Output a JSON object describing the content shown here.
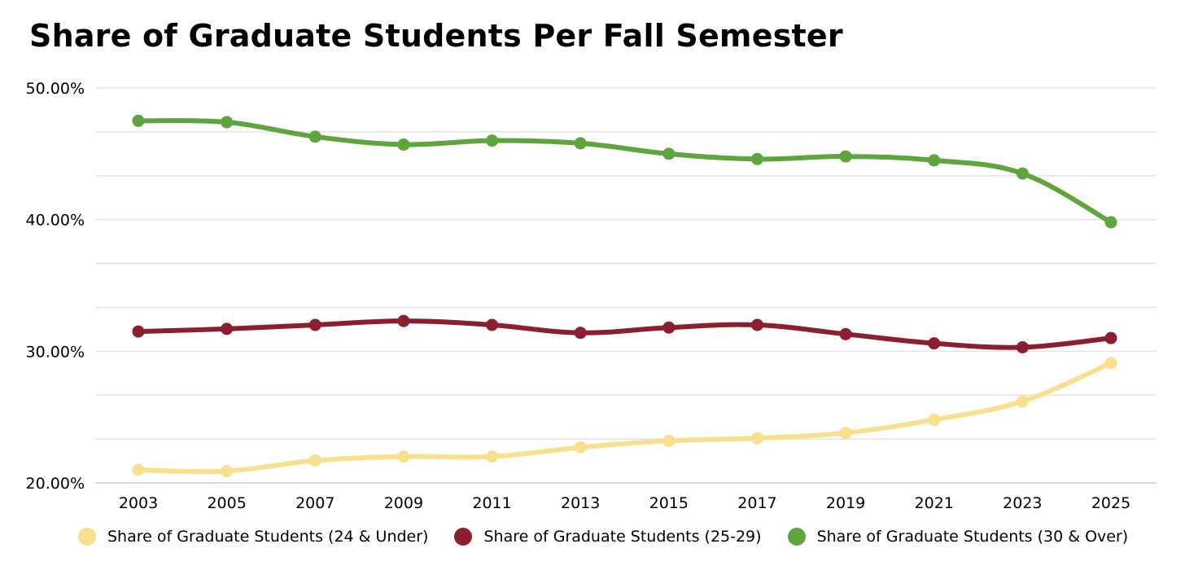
{
  "chart_data": {
    "type": "line",
    "title": "Share of Graduate Students Per Fall Semester",
    "xlabel": "",
    "ylabel": "",
    "x": [
      2003,
      2004,
      2005,
      2006,
      2007,
      2008,
      2009,
      2010,
      2011,
      2012,
      2013,
      2014,
      2015,
      2016,
      2017,
      2018,
      2019,
      2020,
      2021,
      2022,
      2023,
      2024,
      2025
    ],
    "x_tick_labels": [
      "2003",
      "2005",
      "2007",
      "2009",
      "2011",
      "2013",
      "2015",
      "2017",
      "2019",
      "2021",
      "2023",
      "2025"
    ],
    "y_tick_labels": [
      "20.00%",
      "30.00%",
      "40.00%",
      "50.00%"
    ],
    "ylim": [
      20,
      50
    ],
    "y_gridlines": [
      20,
      23.33,
      26.67,
      30,
      33.33,
      36.67,
      40,
      43.33,
      46.67,
      50
    ],
    "grid": true,
    "legend_position": "bottom",
    "series": [
      {
        "name": "Share of Graduate Students (24 & Under)",
        "color": "#f9e08f",
        "values": [
          21.0,
          null,
          20.9,
          null,
          21.7,
          null,
          22.0,
          null,
          22.0,
          null,
          22.7,
          null,
          23.2,
          null,
          23.4,
          null,
          23.8,
          null,
          24.8,
          null,
          26.2,
          null,
          29.1
        ]
      },
      {
        "name": "Share of Graduate Students (25-29)",
        "color": "#8b1f2f",
        "values": [
          31.5,
          null,
          31.7,
          null,
          32.0,
          null,
          32.3,
          null,
          32.0,
          null,
          31.4,
          null,
          31.8,
          null,
          32.0,
          null,
          31.3,
          null,
          30.6,
          null,
          30.3,
          null,
          31.0
        ]
      },
      {
        "name": "Share of Graduate Students (30 & Over)",
        "color": "#5fa53d",
        "values": [
          47.5,
          null,
          47.4,
          null,
          46.3,
          null,
          45.7,
          null,
          46.0,
          null,
          45.8,
          null,
          45.0,
          null,
          44.6,
          null,
          44.8,
          null,
          44.5,
          null,
          43.5,
          null,
          39.8
        ]
      }
    ]
  }
}
